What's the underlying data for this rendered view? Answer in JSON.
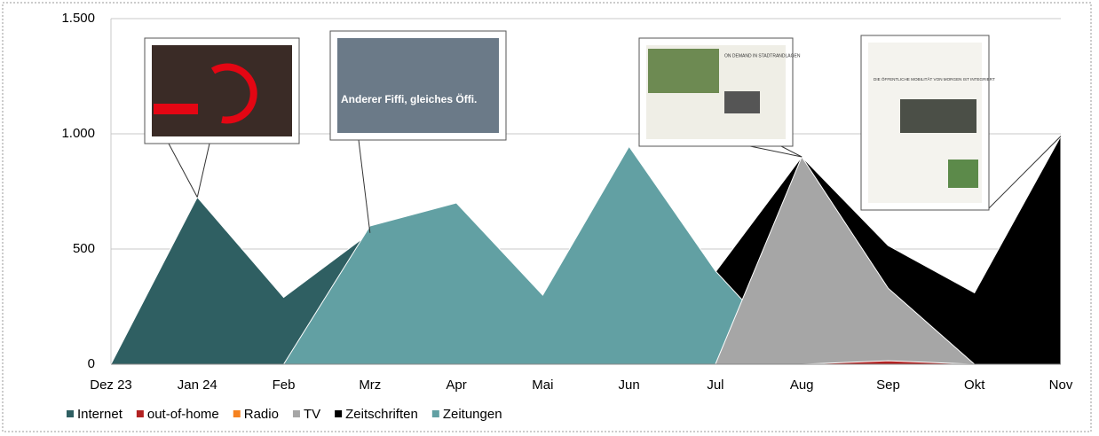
{
  "chart_data": {
    "type": "area",
    "categories": [
      "Dez 23",
      "Jan 24",
      "Feb",
      "Mrz",
      "Apr",
      "Mai",
      "Jun",
      "Jul",
      "Aug",
      "Sep",
      "Okt",
      "Nov"
    ],
    "series": [
      {
        "name": "Internet",
        "color": "#2f5f62",
        "values": [
          0,
          725,
          290,
          570,
          0,
          0,
          0,
          0,
          0,
          0,
          0,
          0
        ]
      },
      {
        "name": "out-of-home",
        "color": "#b22222",
        "values": [
          0,
          0,
          0,
          0,
          0,
          0,
          0,
          0,
          0,
          15,
          0,
          0
        ]
      },
      {
        "name": "Radio",
        "color": "#f58220",
        "values": [
          0,
          0,
          0,
          0,
          0,
          0,
          0,
          0,
          0,
          0,
          0,
          0
        ]
      },
      {
        "name": "TV",
        "color": "#a6a6a6",
        "values": [
          0,
          0,
          0,
          0,
          0,
          0,
          0,
          0,
          900,
          330,
          0,
          0
        ]
      },
      {
        "name": "Zeitschriften",
        "color": "#000000",
        "values": [
          0,
          0,
          0,
          0,
          0,
          0,
          0,
          400,
          900,
          515,
          310,
          990
        ]
      },
      {
        "name": "Zeitungen",
        "color": "#62a0a3",
        "values": [
          0,
          0,
          0,
          600,
          700,
          300,
          945,
          405,
          0,
          0,
          0,
          0
        ]
      }
    ],
    "ylim": [
      0,
      1500
    ],
    "yticks": [
      0,
      500,
      {
        "value": 1000,
        "label": "1.000"
      },
      {
        "value": 1500,
        "label": "1.500"
      }
    ],
    "grid": true,
    "legend": "bottom",
    "annotations": [
      "Anderer Fiffi, gleiches Öffi.",
      "ON DEMAND IN STADTRANDLAGEN",
      "DIE ÖFFENTLICHE MOBILITÄT VON MORGEN IST INTEGRIERT"
    ]
  }
}
